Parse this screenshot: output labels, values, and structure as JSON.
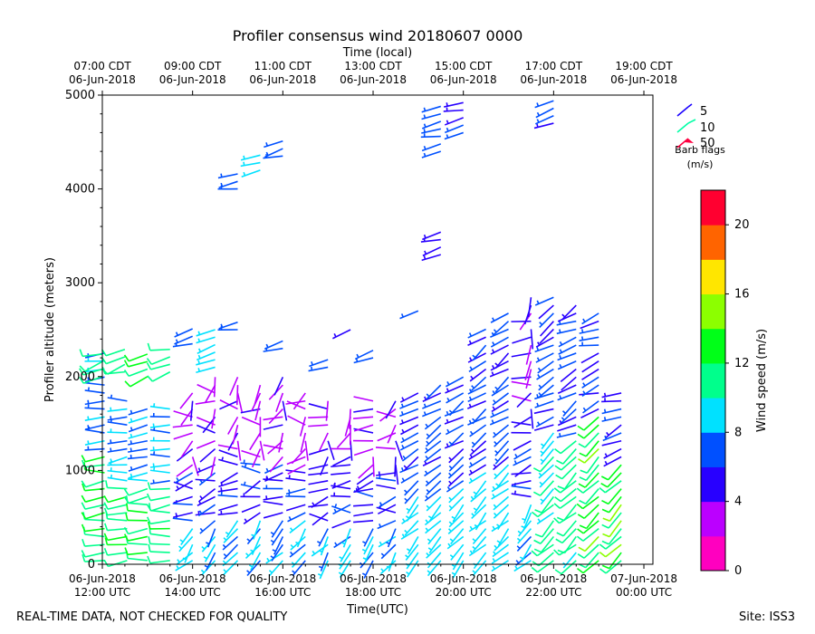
{
  "chart_data": {
    "type": "wind-barb",
    "title": "Profiler consensus wind 20180607 0000",
    "xlabel": "Time(UTC)",
    "x2label": "Time (local)",
    "ylabel": "Profiler altitude (meters)",
    "ylim": [
      0,
      5000
    ],
    "yticks": [
      0,
      1000,
      2000,
      3000,
      4000,
      5000
    ],
    "xlim_hours_after_1200utc": [
      0,
      12.2
    ],
    "bottom_ticks": [
      {
        "hour": 0,
        "line1": "06-Jun-2018",
        "line2": "12:00 UTC"
      },
      {
        "hour": 2,
        "line1": "06-Jun-2018",
        "line2": "14:00 UTC"
      },
      {
        "hour": 4,
        "line1": "06-Jun-2018",
        "line2": "16:00 UTC"
      },
      {
        "hour": 6,
        "line1": "06-Jun-2018",
        "line2": "18:00 UTC"
      },
      {
        "hour": 8,
        "line1": "06-Jun-2018",
        "line2": "20:00 UTC"
      },
      {
        "hour": 10,
        "line1": "06-Jun-2018",
        "line2": "22:00 UTC"
      },
      {
        "hour": 12,
        "line1": "07-Jun-2018",
        "line2": "00:00 UTC"
      }
    ],
    "top_ticks": [
      {
        "hour": 0,
        "line1": "07:00 CDT",
        "line2": "06-Jun-2018"
      },
      {
        "hour": 2,
        "line1": "09:00 CDT",
        "line2": "06-Jun-2018"
      },
      {
        "hour": 4,
        "line1": "11:00 CDT",
        "line2": "06-Jun-2018"
      },
      {
        "hour": 6,
        "line1": "13:00 CDT",
        "line2": "06-Jun-2018"
      },
      {
        "hour": 8,
        "line1": "15:00 CDT",
        "line2": "06-Jun-2018"
      },
      {
        "hour": 10,
        "line1": "17:00 CDT",
        "line2": "06-Jun-2018"
      },
      {
        "hour": 12,
        "line1": "19:00 CDT",
        "line2": "06-Jun-2018"
      }
    ],
    "legend": {
      "entries": [
        {
          "label": "5",
          "speed": 5,
          "color": "#1a00ff"
        },
        {
          "label": "10",
          "speed": 10,
          "color": "#00ffa6"
        },
        {
          "label": "50",
          "speed": 50,
          "color": "#ff0040"
        }
      ],
      "title_line1": "Barb flags",
      "title_line2": "(m/s)",
      "placement": "upper-right-outside"
    },
    "colorbar": {
      "label": "Wind speed (m/s)",
      "min": 0,
      "max": 22,
      "ticks": [
        0,
        4,
        8,
        12,
        16,
        20
      ],
      "colors": [
        "#ff00bf",
        "#bb00ff",
        "#2800ff",
        "#0050ff",
        "#00e1ff",
        "#00ff8c",
        "#00ff18",
        "#8cff00",
        "#ffe600",
        "#ff6400",
        "#ff0030"
      ]
    },
    "columns": [
      {
        "hour": 0.05,
        "top": 2300,
        "mode": "low"
      },
      {
        "hour": 0.55,
        "top": 1750,
        "mode": "low"
      },
      {
        "hour": 1.0,
        "top": 1700,
        "mode": "low"
      },
      {
        "hour": 1.5,
        "top": 1700,
        "mode": "low"
      },
      {
        "hour": 2.0,
        "top": 1850,
        "mode": "mix"
      },
      {
        "hour": 2.5,
        "top": 2050,
        "mode": "mix"
      },
      {
        "hour": 3.0,
        "top": 2000,
        "mode": "mix"
      },
      {
        "hour": 3.5,
        "top": 1950,
        "mode": "mix"
      },
      {
        "hour": 4.0,
        "top": 2050,
        "mode": "mix"
      },
      {
        "hour": 4.5,
        "top": 1900,
        "mode": "mix"
      },
      {
        "hour": 5.0,
        "top": 1800,
        "mode": "mix"
      },
      {
        "hour": 5.5,
        "top": 1700,
        "mode": "mix"
      },
      {
        "hour": 6.0,
        "top": 1750,
        "mode": "mix"
      },
      {
        "hour": 6.5,
        "top": 1800,
        "mode": "mix"
      },
      {
        "hour": 7.0,
        "top": 1850,
        "mode": "blue"
      },
      {
        "hour": 7.5,
        "top": 1950,
        "mode": "blue"
      },
      {
        "hour": 8.0,
        "top": 2050,
        "mode": "blue"
      },
      {
        "hour": 8.5,
        "top": 2550,
        "mode": "blue"
      },
      {
        "hour": 9.0,
        "top": 2700,
        "mode": "blue"
      },
      {
        "hour": 9.5,
        "top": 2850,
        "mode": "mix"
      },
      {
        "hour": 10.0,
        "top": 2850,
        "mode": "cyan"
      },
      {
        "hour": 10.5,
        "top": 2800,
        "mode": "cyan"
      },
      {
        "hour": 11.0,
        "top": 2700,
        "mode": "green"
      },
      {
        "hour": 11.5,
        "top": 1850,
        "mode": "green"
      }
    ],
    "upper_groups": [
      {
        "hour": 0.0,
        "alt0": 2000,
        "alt1": 2300,
        "speed": 11
      },
      {
        "hour": 0.5,
        "alt0": 2050,
        "alt1": 2350,
        "speed": 11
      },
      {
        "hour": 1.0,
        "alt0": 2000,
        "alt1": 2300,
        "speed": 12
      },
      {
        "hour": 1.5,
        "alt0": 2050,
        "alt1": 2350,
        "speed": 11
      },
      {
        "hour": 2.0,
        "alt0": 2350,
        "alt1": 2550,
        "speed": 7
      },
      {
        "hour": 2.5,
        "alt0": 2100,
        "alt1": 2500,
        "speed": 9
      },
      {
        "hour": 3.0,
        "alt0": 2500,
        "alt1": 2650,
        "speed": 6
      },
      {
        "hour": 3.0,
        "alt0": 4000,
        "alt1": 4200,
        "speed": 7
      },
      {
        "hour": 3.5,
        "alt0": 4200,
        "alt1": 4400,
        "speed": 9
      },
      {
        "hour": 4.0,
        "alt0": 4350,
        "alt1": 4550,
        "speed": 7
      },
      {
        "hour": 4.0,
        "alt0": 2300,
        "alt1": 2400,
        "speed": 6
      },
      {
        "hour": 5.0,
        "alt0": 2100,
        "alt1": 2250,
        "speed": 7
      },
      {
        "hour": 5.5,
        "alt0": 2500,
        "alt1": 2550,
        "speed": 6
      },
      {
        "hour": 6.0,
        "alt0": 2200,
        "alt1": 2300,
        "speed": 7
      },
      {
        "hour": 7.0,
        "alt0": 2700,
        "alt1": 2750,
        "speed": 7
      },
      {
        "hour": 7.5,
        "alt0": 4400,
        "alt1": 4950,
        "speed": 7
      },
      {
        "hour": 8.0,
        "alt0": 4600,
        "alt1": 4950,
        "speed": 6
      },
      {
        "hour": 7.5,
        "alt0": 3300,
        "alt1": 3550,
        "speed": 5
      },
      {
        "hour": 10.0,
        "alt0": 4700,
        "alt1": 4950,
        "speed": 6
      }
    ]
  },
  "footer": {
    "left": "REAL-TIME DATA, NOT CHECKED FOR QUALITY",
    "right": "Site: ISS3"
  }
}
